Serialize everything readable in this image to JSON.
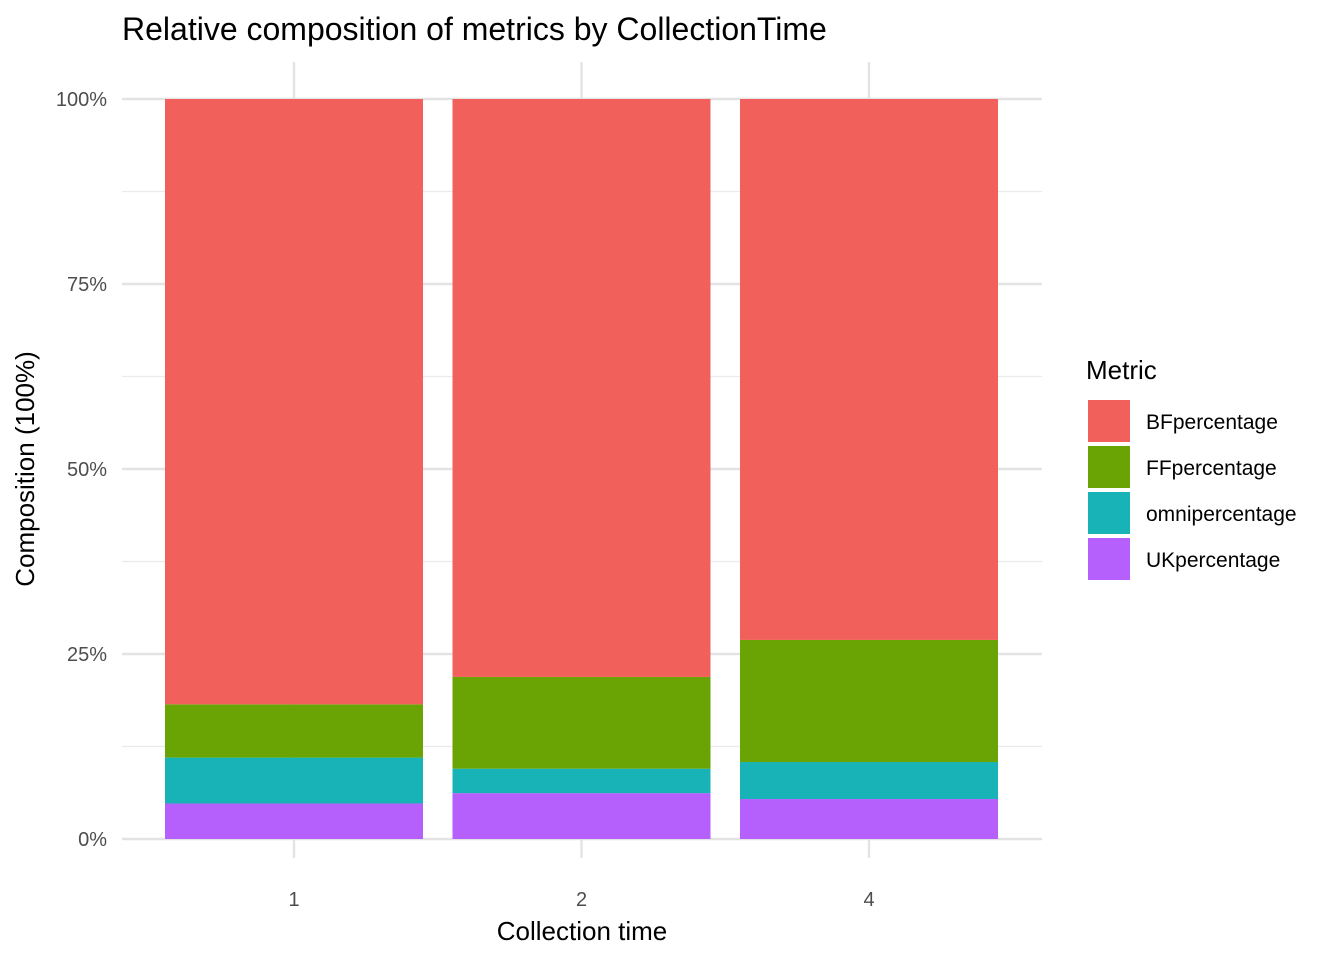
{
  "chart_data": {
    "type": "bar",
    "stacked": "percent",
    "title": "Relative composition of metrics by CollectionTime",
    "xlabel": "Collection time",
    "ylabel": "Composition (100%)",
    "categories": [
      "1",
      "2",
      "4"
    ],
    "ylim": [
      0,
      100
    ],
    "yticks": [
      0,
      25,
      50,
      75,
      100
    ],
    "ytick_labels": [
      "0%",
      "25%",
      "50%",
      "75%",
      "100%"
    ],
    "grid": true,
    "legend": {
      "title": "Metric",
      "position": "right"
    },
    "series": [
      {
        "name": "BFpercentage",
        "color": "#F2605C",
        "values": [
          81.8,
          78.1,
          73.1
        ]
      },
      {
        "name": "FFpercentage",
        "color": "#6AA304",
        "values": [
          7.2,
          12.4,
          16.5
        ]
      },
      {
        "name": "omnipercentage",
        "color": "#18B3B7",
        "values": [
          6.2,
          3.3,
          5.0
        ]
      },
      {
        "name": "UKpercentage",
        "color": "#B560FD",
        "values": [
          4.8,
          6.2,
          5.4
        ]
      }
    ]
  }
}
